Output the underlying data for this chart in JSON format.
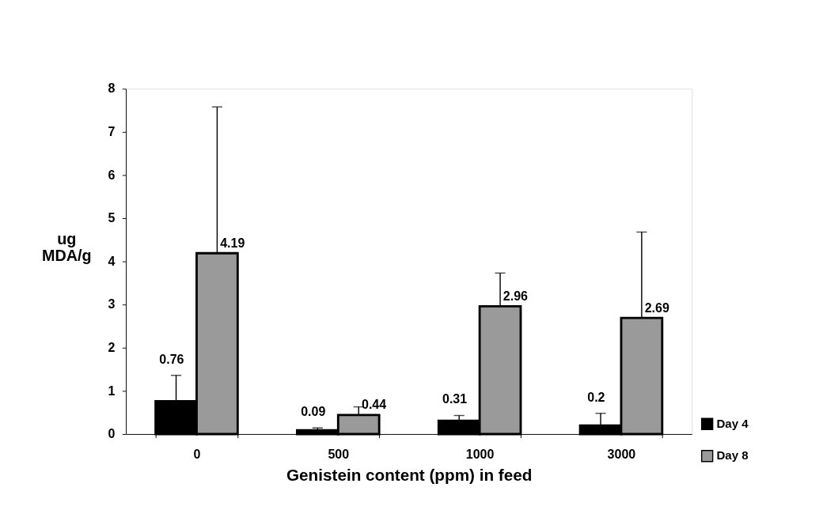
{
  "chart_data": {
    "type": "bar",
    "xlabel": "Genistein content (ppm) in feed",
    "ylabel": "ug MDA/g",
    "categories": [
      "0",
      "500",
      "1000",
      "3000"
    ],
    "series": [
      {
        "name": "Day 4",
        "color": "#000000",
        "values": [
          0.76,
          0.09,
          0.31,
          0.2
        ],
        "errors": [
          [
            0.76,
            1.36
          ],
          [
            0.09,
            0.14
          ],
          [
            0.31,
            0.43
          ],
          [
            0.2,
            0.48
          ]
        ]
      },
      {
        "name": "Day 8",
        "color": "#9a9a9a",
        "values": [
          4.19,
          0.44,
          2.96,
          2.69
        ],
        "errors": [
          [
            4.19,
            7.58
          ],
          [
            0.44,
            0.63
          ],
          [
            2.96,
            3.73
          ],
          [
            2.69,
            4.68
          ]
        ]
      }
    ],
    "ylim": [
      0,
      8
    ],
    "yticks": [
      0,
      1,
      2,
      3,
      4,
      5,
      6,
      7,
      8
    ],
    "data_labels": true,
    "legend": "bottom right",
    "grid": false
  }
}
